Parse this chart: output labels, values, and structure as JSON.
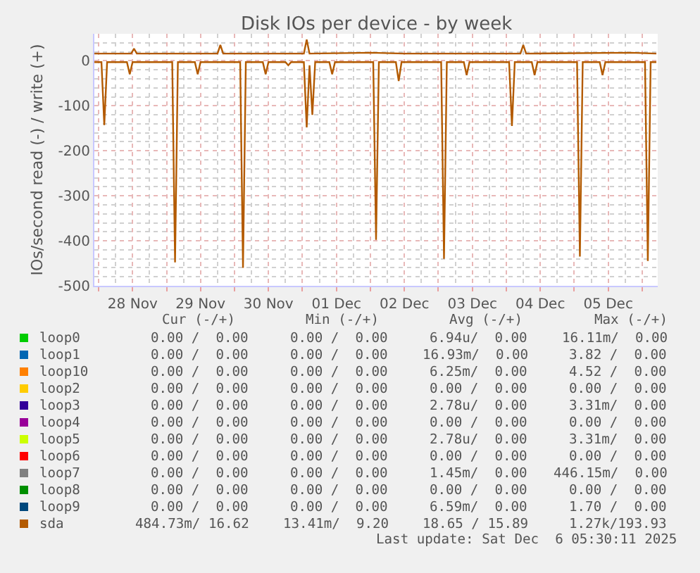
{
  "chart_data": {
    "type": "line",
    "title": "Disk IOs per device - by week",
    "ylabel": "IOs/second read (-) / write (+)",
    "xlim": [
      "2025-11-27T22:30",
      "2025-12-06T05:30"
    ],
    "xticks": [
      {
        "value": "2025-11-28T00:00",
        "label": null
      },
      {
        "value": "2025-11-28T12:00",
        "label": "28 Nov"
      },
      {
        "value": "2025-11-29T00:00",
        "label": null
      },
      {
        "value": "2025-11-29T12:00",
        "label": "29 Nov"
      },
      {
        "value": "2025-11-30T00:00",
        "label": null
      },
      {
        "value": "2025-11-30T12:00",
        "label": "30 Nov"
      },
      {
        "value": "2025-12-01T00:00",
        "label": null
      },
      {
        "value": "2025-12-01T12:00",
        "label": "01 Dec"
      },
      {
        "value": "2025-12-02T00:00",
        "label": null
      },
      {
        "value": "2025-12-02T12:00",
        "label": "02 Dec"
      },
      {
        "value": "2025-12-03T00:00",
        "label": null
      },
      {
        "value": "2025-12-03T12:00",
        "label": "03 Dec"
      },
      {
        "value": "2025-12-04T00:00",
        "label": null
      },
      {
        "value": "2025-12-04T12:00",
        "label": "04 Dec"
      },
      {
        "value": "2025-12-05T00:00",
        "label": null
      },
      {
        "value": "2025-12-05T12:00",
        "label": "05 Dec"
      },
      {
        "value": "2025-12-06T00:00",
        "label": null
      }
    ],
    "ylim": [
      -500,
      60
    ],
    "yticks": [
      -500,
      -400,
      -300,
      -200,
      -100,
      0
    ],
    "grid": true,
    "legend": "bottom",
    "marker": "none",
    "line_style": "solid",
    "series": [
      {
        "name": "loop0",
        "color": "#00cc00"
      },
      {
        "name": "loop1",
        "color": "#0066b3"
      },
      {
        "name": "loop10",
        "color": "#ff8000"
      },
      {
        "name": "loop2",
        "color": "#ffcc00"
      },
      {
        "name": "loop3",
        "color": "#330099"
      },
      {
        "name": "loop4",
        "color": "#990099"
      },
      {
        "name": "loop5",
        "color": "#ccff00"
      },
      {
        "name": "loop6",
        "color": "#ff0000"
      },
      {
        "name": "loop7",
        "color": "#808080"
      },
      {
        "name": "loop8",
        "color": "#008f00"
      },
      {
        "name": "loop9",
        "color": "#00487d"
      },
      {
        "name": "sda",
        "color": "#b35a00",
        "x": [
          "2025-11-27T22:30",
          "2025-11-28T01:00",
          "2025-11-28T02:00",
          "2025-11-28T03:00",
          "2025-11-28T10:00",
          "2025-11-28T11:00",
          "2025-11-28T12:00",
          "2025-11-29T02:00",
          "2025-11-29T03:00",
          "2025-11-29T04:00",
          "2025-11-29T10:00",
          "2025-11-29T11:00",
          "2025-11-29T12:00",
          "2025-11-30T02:00",
          "2025-11-30T03:00",
          "2025-11-30T04:00",
          "2025-11-30T10:00",
          "2025-11-30T11:00",
          "2025-11-30T12:00",
          "2025-11-30T18:00",
          "2025-11-30T19:00",
          "2025-11-30T20:00",
          "2025-12-01T00:30",
          "2025-12-01T01:30",
          "2025-12-01T02:30",
          "2025-12-01T03:30",
          "2025-12-01T04:30",
          "2025-12-01T09:30",
          "2025-12-01T10:30",
          "2025-12-01T11:30",
          "2025-12-02T01:00",
          "2025-12-02T02:00",
          "2025-12-02T03:00",
          "2025-12-02T09:00",
          "2025-12-02T10:00",
          "2025-12-02T11:00",
          "2025-12-03T01:00",
          "2025-12-03T02:00",
          "2025-12-03T03:00",
          "2025-12-03T09:00",
          "2025-12-03T10:00",
          "2025-12-03T11:00",
          "2025-12-04T01:00",
          "2025-12-04T02:00",
          "2025-12-04T03:00",
          "2025-12-04T09:00",
          "2025-12-04T10:00",
          "2025-12-04T11:00",
          "2025-12-05T01:00",
          "2025-12-05T02:00",
          "2025-12-05T03:00",
          "2025-12-05T09:00",
          "2025-12-05T10:00",
          "2025-12-05T11:00",
          "2025-12-06T01:00",
          "2025-12-06T02:00",
          "2025-12-06T03:00",
          "2025-12-06T05:00"
        ],
        "values": [
          -3,
          -3,
          -143,
          -3,
          -3,
          -30,
          -3,
          -3,
          -448,
          -3,
          -3,
          -30,
          -3,
          -3,
          -460,
          -3,
          -3,
          -30,
          -3,
          -3,
          -10,
          -3,
          -3,
          -148,
          -10,
          -120,
          -3,
          -3,
          -30,
          -3,
          -3,
          -398,
          -3,
          -3,
          -45,
          -3,
          -3,
          -440,
          -3,
          -3,
          -32,
          -3,
          -3,
          -145,
          -3,
          -3,
          -32,
          -3,
          -3,
          -435,
          -3,
          -3,
          -32,
          -3,
          -3,
          -445,
          -3,
          -3
        ]
      },
      {
        "color": "#b35a00",
        "x": [
          "2025-11-27T22:30",
          "2025-11-28T11:30",
          "2025-11-28T12:30",
          "2025-11-28T13:30",
          "2025-11-29T18:00",
          "2025-11-29T19:00",
          "2025-11-29T20:00",
          "2025-12-01T00:30",
          "2025-12-01T01:30",
          "2025-12-01T02:30",
          "2025-12-02T00:00",
          "2025-12-02T12:00",
          "2025-12-04T05:00",
          "2025-12-04T06:00",
          "2025-12-04T07:00",
          "2025-12-05T20:00",
          "2025-12-06T05:00"
        ],
        "values": [
          16,
          16,
          27,
          16,
          16,
          35,
          16,
          16,
          47,
          16,
          18,
          16,
          16,
          35,
          16,
          18,
          16
        ]
      }
    ],
    "annotations": [
      "Cur (-/+)",
      "Min (-/+)",
      "Avg (-/+)",
      "Max (-/+)",
      "0.00 /  0.00",
      "0.00 /  0.00",
      "6.94u/  0.00",
      "16.11m/  0.00",
      "0.00 /  0.00",
      "0.00 /  0.00",
      "16.93m/  0.00",
      "3.82 /  0.00",
      "0.00 /  0.00",
      "0.00 /  0.00",
      "6.25m/  0.00",
      "4.52 /  0.00",
      "0.00 /  0.00",
      "0.00 /  0.00",
      "0.00 /  0.00",
      "0.00 /  0.00",
      "0.00 /  0.00",
      "0.00 /  0.00",
      "2.78u/  0.00",
      "3.31m/  0.00",
      "0.00 /  0.00",
      "0.00 /  0.00",
      "0.00 /  0.00",
      "0.00 /  0.00",
      "0.00 /  0.00",
      "0.00 /  0.00",
      "2.78u/  0.00",
      "3.31m/  0.00",
      "0.00 /  0.00",
      "0.00 /  0.00",
      "0.00 /  0.00",
      "0.00 /  0.00",
      "0.00 /  0.00",
      "0.00 /  0.00",
      "1.45m/  0.00",
      "446.15m/  0.00",
      "0.00 /  0.00",
      "0.00 /  0.00",
      "0.00 /  0.00",
      "0.00 /  0.00",
      "0.00 /  0.00",
      "0.00 /  0.00",
      "6.59m/  0.00",
      "1.70 /  0.00",
      "484.73m/ 16.62",
      "13.41m/  9.20",
      "18.65 / 15.89",
      "1.27k/193.93",
      "Last update: Sat Dec  6 05:30:11 2025"
    ]
  }
}
